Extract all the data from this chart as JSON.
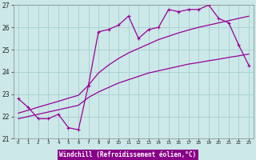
{
  "hours": [
    0,
    1,
    2,
    3,
    4,
    5,
    6,
    7,
    8,
    9,
    10,
    11,
    12,
    13,
    14,
    15,
    16,
    17,
    18,
    19,
    20,
    21,
    22,
    23
  ],
  "windchill": [
    22.8,
    22.4,
    21.9,
    21.9,
    22.1,
    21.5,
    21.4,
    23.4,
    25.8,
    25.9,
    26.1,
    26.5,
    25.5,
    25.9,
    26.0,
    26.8,
    26.7,
    26.8,
    26.8,
    27.0,
    26.4,
    26.2,
    25.2,
    24.3
  ],
  "line_upper": [
    22.15,
    22.28,
    22.42,
    22.55,
    22.68,
    22.82,
    22.95,
    23.4,
    23.95,
    24.3,
    24.6,
    24.85,
    25.05,
    25.25,
    25.45,
    25.6,
    25.75,
    25.88,
    26.0,
    26.1,
    26.2,
    26.3,
    26.4,
    26.5
  ],
  "line_lower": [
    21.9,
    22.0,
    22.1,
    22.2,
    22.3,
    22.4,
    22.5,
    22.85,
    23.1,
    23.3,
    23.5,
    23.65,
    23.8,
    23.95,
    24.05,
    24.15,
    24.25,
    24.35,
    24.42,
    24.5,
    24.57,
    24.65,
    24.72,
    24.8
  ],
  "color": "#990099",
  "bg_color": "#cce8e8",
  "grid_color": "#aad4d4",
  "ylim": [
    21,
    27
  ],
  "yticks": [
    21,
    22,
    23,
    24,
    25,
    26,
    27
  ],
  "xlabel": "Windchill (Refroidissement éolien,°C)",
  "xlabel_bg": "#880088",
  "xlabel_color": "#ffffff",
  "title_color": "#333333"
}
